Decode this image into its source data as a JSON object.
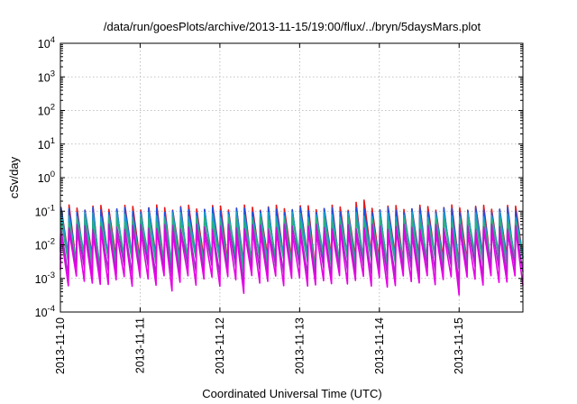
{
  "chart_data": {
    "type": "line",
    "title": "/data/run/goesPlots/archive/2013-11-15/19:00/flux/../bryn/5daysMars.plot",
    "xlabel": "Coordinated Universal Time (UTC)",
    "ylabel": "cSv/day",
    "y_scale": "log",
    "ylim": [
      0.0001,
      10000
    ],
    "xlim": [
      "2013-11-10",
      "2013-11-15 19:00"
    ],
    "x_ticks": [
      "2013-11-10",
      "2013-11-11",
      "2013-11-12",
      "2013-11-13",
      "2013-11-14",
      "2013-11-15"
    ],
    "y_ticks": [
      {
        "base": "10",
        "exp": "-4"
      },
      {
        "base": "10",
        "exp": "-3"
      },
      {
        "base": "10",
        "exp": "-2"
      },
      {
        "base": "10",
        "exp": "-1"
      },
      {
        "base": "10",
        "exp": "0"
      },
      {
        "base": "10",
        "exp": "1"
      },
      {
        "base": "10",
        "exp": "2"
      },
      {
        "base": "10",
        "exp": "3"
      },
      {
        "base": "10",
        "exp": "4"
      }
    ],
    "grid": true,
    "x_start_day": "2013-11-10",
    "x_end_day_fraction": 5.8,
    "sawtooth_period_days": 0.1,
    "series": [
      {
        "color": "#e41a1c",
        "peak": 0.13,
        "trough": 0.0035
      },
      {
        "color": "#1f4fe0",
        "peak": 0.11,
        "trough": 0.003
      },
      {
        "color": "#17a0c8",
        "peak": 0.08,
        "trough": 0.004
      },
      {
        "color": "#2ab07f",
        "peak": 0.055,
        "trough": 0.0035
      },
      {
        "color": "#9b2fbf",
        "peak": 0.035,
        "trough": 0.0018
      },
      {
        "color": "#e600e6",
        "peak": 0.025,
        "trough": 0.0009
      }
    ]
  }
}
